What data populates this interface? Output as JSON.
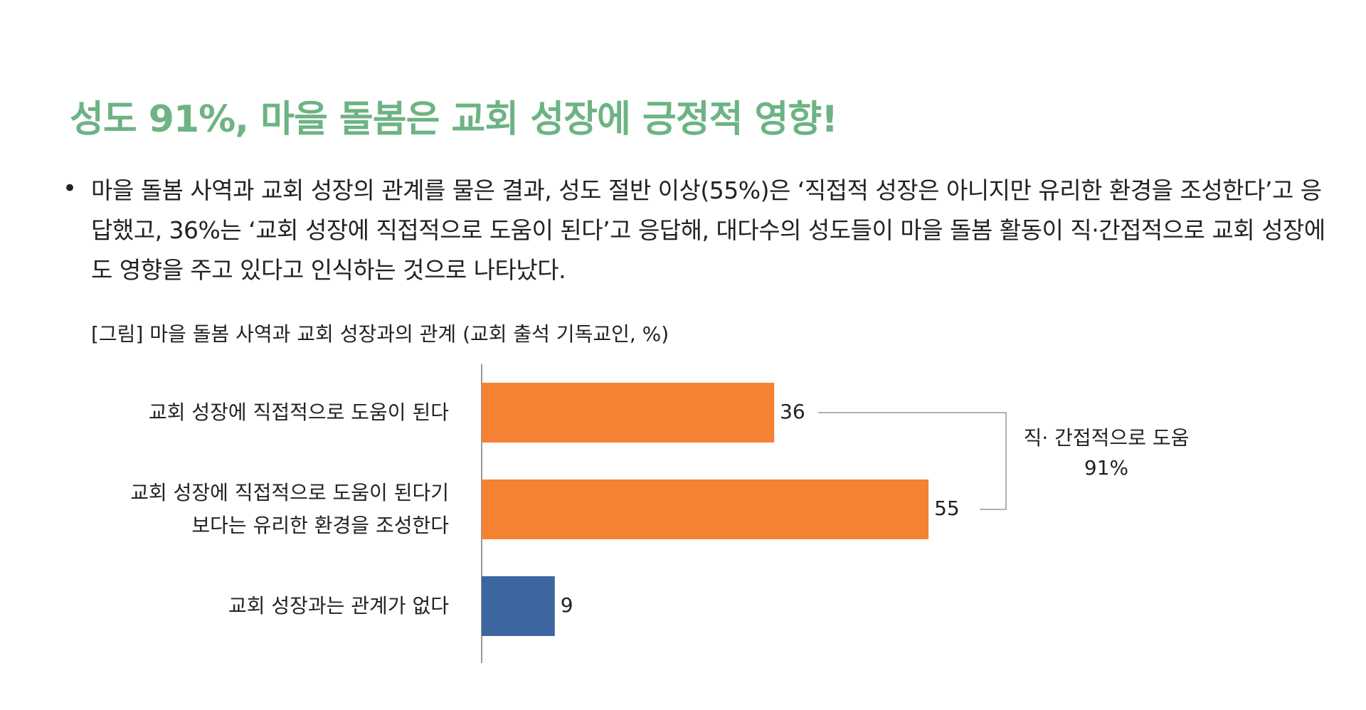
{
  "title": "성도 91%, 마을 돌봄은 교회 성장에 긍정적 영향!",
  "bullet": "마을 돌봄 사역과 교회 성장의 관계를 물은 결과, 성도 절반 이상(55%)은 ‘직접적 성장은 아니지만 유리한 환경을 조성한다’고 응답했고, 36%는 ‘교회 성장에 직접적으로 도움이 된다’고 응답해, 대다수의 성도들이 마을 돌봄 활동이 직·간접적으로 교회 성장에도 영향을 주고 있다고 인식하는 것으로 나타났다.",
  "chart_data": {
    "type": "bar",
    "orientation": "horizontal",
    "title": "[그림] 마을 돌봄 사역과 교회 성장과의 관계 (교회 출석 기독교인, %)",
    "categories": [
      "교회 성장에 직접적으로 도움이 된다",
      "교회 성장에 직접적으로 도움이 된다기\n보다는 유리한 환경을 조성한다",
      "교회 성장과는 관계가 없다"
    ],
    "values": [
      36,
      55,
      9
    ],
    "colors": [
      "#f58133",
      "#f58133",
      "#3c66a0"
    ],
    "xlim": [
      0,
      100
    ],
    "annotation": [
      "직· 간접적으로 도움",
      "91%"
    ]
  }
}
